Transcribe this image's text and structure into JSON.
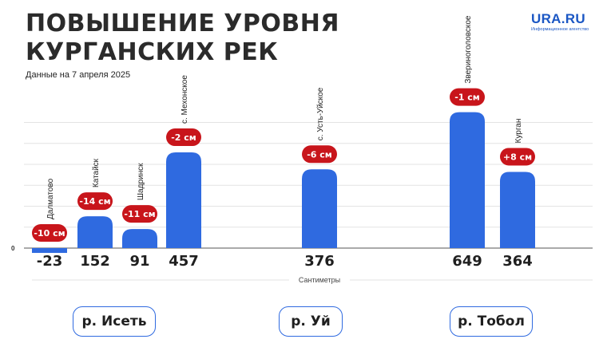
{
  "header": {
    "title_line1": "ПОВЫШЕНИЕ УРОВНЯ",
    "title_line2": "КУРГАНСКИХ РЕК",
    "subtitle": "Данные на 7 апреля 2025"
  },
  "logo": {
    "name": "URA.RU",
    "tagline": "Информационное агентство"
  },
  "colors": {
    "bar": "#2f6ae0",
    "badge": "#c8151b",
    "grid": "#e3e3e3",
    "text": "#1f1f1f"
  },
  "chart_data": {
    "type": "bar",
    "title": "ПОВЫШЕНИЕ УРОВНЯ КУРГАНСКИХ РЕК",
    "subtitle": "Данные на 7 апреля 2025",
    "xlabel": "Сантиметры",
    "ylabel": "",
    "y_tick_labels": [
      "0"
    ],
    "ylim": [
      -40,
      700
    ],
    "grid": true,
    "legend": "none",
    "categories": [
      "Далматово",
      "Катайск",
      "Шадринск",
      "с. Мехонское",
      "с. Усть-Уйское",
      "Звериноголовское",
      "Курган"
    ],
    "values": [
      -23,
      152,
      91,
      457,
      376,
      649,
      364
    ],
    "value_labels": [
      "-23",
      "152",
      "91",
      "457",
      "376",
      "649",
      "364"
    ],
    "changes": [
      "-10 см",
      "-14 см",
      "-11 см",
      "-2 см",
      "-6 см",
      "-1 см",
      "+8 см"
    ],
    "groups": [
      {
        "river": "р. Исеть",
        "stations": [
          "Далматово",
          "Катайск",
          "Шадринск",
          "с. Мехонское"
        ]
      },
      {
        "river": "р. Уй",
        "stations": [
          "с. Усть-Уйское"
        ]
      },
      {
        "river": "р. Тобол",
        "stations": [
          "Звериноголовское",
          "Курган"
        ]
      }
    ]
  }
}
